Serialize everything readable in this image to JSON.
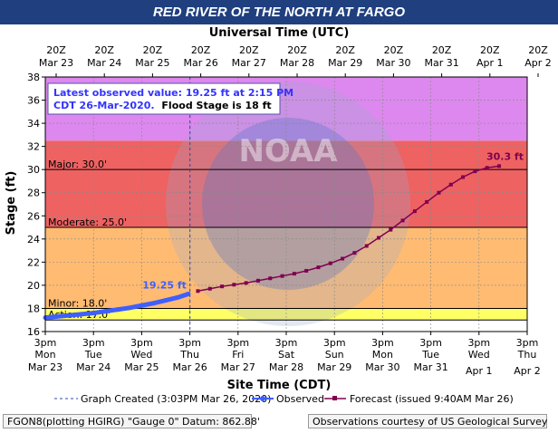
{
  "title": "RED RIVER OF THE NORTH AT FARGO",
  "top_axis_title": "Universal Time (UTC)",
  "bottom_axis_title": "Site Time (CDT)",
  "ylabel": "Stage (ft)",
  "info_box": {
    "line1": "Latest observed value: 19.25 ft at 2:15 PM",
    "line2_prefix": "CDT 26-Mar-2020.",
    "line2_bold": "Flood Stage is 18 ft"
  },
  "legend": {
    "graph_created": "Graph Created (3:03PM Mar 26, 2020)",
    "observed": "Observed",
    "forecast": "Forecast (issued 9:40AM Mar 26)"
  },
  "footer": {
    "left": "FGON8(plotting HGIRG) \"Gauge 0\" Datum: 862.88'",
    "right": "Observations courtesy of US Geological Survey"
  },
  "watermark_text": "NOAA",
  "colors": {
    "title_bar": "#1f3f7f",
    "major": "#ee6262",
    "moderate_band": "#ee6262",
    "minor_band": "#ffbb72",
    "action_band": "#ffff66",
    "above_major": "#dd88ee",
    "observed": "#3f5fff",
    "forecast": "#800050",
    "created_line": "#3344aa"
  },
  "chart_data": {
    "type": "line",
    "xlabel": "Site Time (CDT)",
    "ylabel": "Stage (ft)",
    "ylim": [
      16,
      38
    ],
    "yticks": [
      16,
      18,
      20,
      22,
      24,
      26,
      28,
      30,
      32,
      34,
      36,
      38
    ],
    "grid": true,
    "x_start": "2020-03-23T15:00",
    "x_end": "2020-04-02T15:00",
    "bottom_ticks": [
      {
        "line1": "3pm",
        "line2": "Mon",
        "line3": "Mar 23",
        "line4": ""
      },
      {
        "line1": "3pm",
        "line2": "Tue",
        "line3": "Mar 24",
        "line4": ""
      },
      {
        "line1": "3pm",
        "line2": "Wed",
        "line3": "Mar 25",
        "line4": ""
      },
      {
        "line1": "3pm",
        "line2": "Thu",
        "line3": "Mar 26",
        "line4": ""
      },
      {
        "line1": "3pm",
        "line2": "Fri",
        "line3": "Mar 27",
        "line4": ""
      },
      {
        "line1": "3pm",
        "line2": "Sat",
        "line3": "Mar 28",
        "line4": ""
      },
      {
        "line1": "3pm",
        "line2": "Sun",
        "line3": "Mar 29",
        "line4": ""
      },
      {
        "line1": "3pm",
        "line2": "Mon",
        "line3": "Mar 30",
        "line4": ""
      },
      {
        "line1": "3pm",
        "line2": "Tue",
        "line3": "Mar 31",
        "line4": ""
      },
      {
        "line1": "3pm",
        "line2": "Wed",
        "line3": "",
        "line4": "Apr 1"
      },
      {
        "line1": "3pm",
        "line2": "Thu",
        "line3": "",
        "line4": "Apr 2"
      }
    ],
    "top_ticks": [
      {
        "line1": "20Z",
        "line2": "Mar 23"
      },
      {
        "line1": "20Z",
        "line2": "Mar 24"
      },
      {
        "line1": "20Z",
        "line2": "Mar 25"
      },
      {
        "line1": "20Z",
        "line2": "Mar 26"
      },
      {
        "line1": "20Z",
        "line2": "Mar 27"
      },
      {
        "line1": "20Z",
        "line2": "Mar 28"
      },
      {
        "line1": "20Z",
        "line2": "Mar 29"
      },
      {
        "line1": "20Z",
        "line2": "Mar 30"
      },
      {
        "line1": "20Z",
        "line2": "Mar 31"
      },
      {
        "line1": "20Z",
        "line2": "Apr 1"
      },
      {
        "line1": "20Z",
        "line2": "Apr 2"
      }
    ],
    "flood_categories": [
      {
        "name": "Action",
        "label": "Action: 17.0'",
        "stage": 17.0
      },
      {
        "name": "Minor",
        "label": "Minor: 18.0'",
        "stage": 18.0
      },
      {
        "name": "Moderate",
        "label": "Moderate: 25.0'",
        "stage": 25.0
      },
      {
        "name": "Major",
        "label": "Major: 30.0'",
        "stage": 30.0
      }
    ],
    "graph_created": "2020-03-26T15:03",
    "observed": {
      "name": "Observed",
      "last_label": "19.25 ft",
      "points": [
        [
          "2020-03-23T15:00",
          17.2
        ],
        [
          "2020-03-23T21:00",
          17.3
        ],
        [
          "2020-03-24T03:00",
          17.4
        ],
        [
          "2020-03-24T09:00",
          17.5
        ],
        [
          "2020-03-24T15:00",
          17.6
        ],
        [
          "2020-03-24T21:00",
          17.75
        ],
        [
          "2020-03-25T03:00",
          17.9
        ],
        [
          "2020-03-25T09:00",
          18.05
        ],
        [
          "2020-03-25T15:00",
          18.25
        ],
        [
          "2020-03-25T21:00",
          18.45
        ],
        [
          "2020-03-26T03:00",
          18.7
        ],
        [
          "2020-03-26T09:00",
          18.95
        ],
        [
          "2020-03-26T14:15",
          19.25
        ]
      ]
    },
    "forecast": {
      "name": "Forecast (issued 9:40AM Mar 26)",
      "last_label": "30.3 ft",
      "points": [
        [
          "2020-03-26T19:00",
          19.5
        ],
        [
          "2020-03-27T01:00",
          19.7
        ],
        [
          "2020-03-27T07:00",
          19.9
        ],
        [
          "2020-03-27T13:00",
          20.05
        ],
        [
          "2020-03-27T19:00",
          20.2
        ],
        [
          "2020-03-28T01:00",
          20.4
        ],
        [
          "2020-03-28T07:00",
          20.6
        ],
        [
          "2020-03-28T13:00",
          20.8
        ],
        [
          "2020-03-28T19:00",
          21.0
        ],
        [
          "2020-03-29T01:00",
          21.25
        ],
        [
          "2020-03-29T07:00",
          21.55
        ],
        [
          "2020-03-29T13:00",
          21.9
        ],
        [
          "2020-03-29T19:00",
          22.3
        ],
        [
          "2020-03-30T01:00",
          22.8
        ],
        [
          "2020-03-30T07:00",
          23.4
        ],
        [
          "2020-03-30T13:00",
          24.1
        ],
        [
          "2020-03-30T19:00",
          24.8
        ],
        [
          "2020-03-31T01:00",
          25.6
        ],
        [
          "2020-03-31T07:00",
          26.4
        ],
        [
          "2020-03-31T13:00",
          27.2
        ],
        [
          "2020-03-31T19:00",
          28.0
        ],
        [
          "2020-04-01T01:00",
          28.7
        ],
        [
          "2020-04-01T07:00",
          29.35
        ],
        [
          "2020-04-01T13:00",
          29.85
        ],
        [
          "2020-04-01T19:00",
          30.15
        ],
        [
          "2020-04-02T01:00",
          30.3
        ]
      ]
    }
  }
}
